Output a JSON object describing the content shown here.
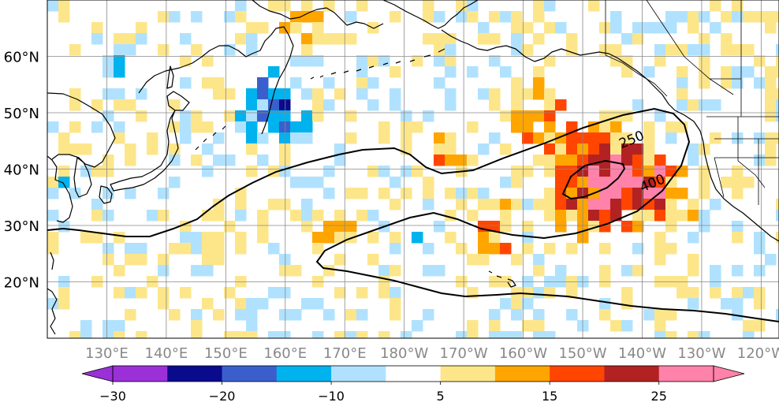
{
  "map": {
    "projection": "equirectangular",
    "lon_range": [
      120,
      243
    ],
    "lat_range": [
      10,
      70
    ],
    "grid": true,
    "lat_ticks": [
      {
        "value": 20,
        "label": "20°N"
      },
      {
        "value": 30,
        "label": "30°N"
      },
      {
        "value": 40,
        "label": "40°N"
      },
      {
        "value": 50,
        "label": "50°N"
      },
      {
        "value": 60,
        "label": "60°N"
      }
    ],
    "lon_ticks": [
      {
        "value": 130,
        "label": "130°E"
      },
      {
        "value": 140,
        "label": "140°E"
      },
      {
        "value": 150,
        "label": "150°E"
      },
      {
        "value": 160,
        "label": "160°E"
      },
      {
        "value": 170,
        "label": "170°E"
      },
      {
        "value": 180,
        "label": "180°W"
      },
      {
        "value": 190,
        "label": "170°W"
      },
      {
        "value": 200,
        "label": "160°W"
      },
      {
        "value": 210,
        "label": "150°W"
      },
      {
        "value": 220,
        "label": "140°W"
      },
      {
        "value": 230,
        "label": "130°W"
      },
      {
        "value": 240,
        "label": "120°W"
      }
    ],
    "contours": [
      {
        "value": 250,
        "label": "250",
        "label_lon": 218.5,
        "label_lat": 44.5
      },
      {
        "value": 400,
        "label": "400",
        "label_lon": 222,
        "label_lat": 36.8
      }
    ]
  },
  "colorbar": {
    "levels": [
      -30,
      -25,
      -20,
      -15,
      -10,
      -5,
      5,
      10,
      15,
      20,
      25
    ],
    "colors": [
      "#9b30d9",
      "#0a0a8c",
      "#3a5fcd",
      "#00b2ee",
      "#b0e2ff",
      "#ffffff",
      "#fde68a",
      "#ffa500",
      "#ff4500",
      "#b22222",
      "#ff82ab"
    ],
    "extend": "both",
    "tick_labels": [
      {
        "value": -30,
        "label": "−30"
      },
      {
        "value": -20,
        "label": "−20"
      },
      {
        "value": -10,
        "label": "−10"
      },
      {
        "value": 5,
        "label": "5"
      },
      {
        "value": 15,
        "label": "15"
      },
      {
        "value": 25,
        "label": "25"
      }
    ]
  }
}
